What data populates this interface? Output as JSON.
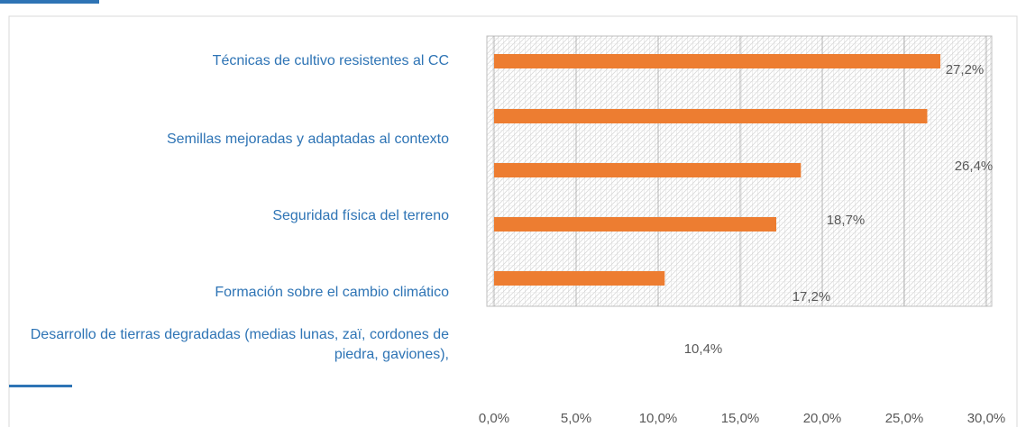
{
  "chart_data": {
    "type": "barh",
    "categories": [
      "Técnicas de cultivo resistentes al CC",
      "Semillas mejoradas y adaptadas al contexto",
      "Seguridad física del terreno",
      "Formación sobre el cambio climático",
      "Desarrollo de tierras degradadas (medias lunas, zaï, cordones de piedra, gaviones),"
    ],
    "values": [
      27.2,
      26.4,
      18.7,
      17.2,
      10.4
    ],
    "value_labels": [
      "27,2%",
      "26,4%",
      "18,7%",
      "17,2%",
      "10,4%"
    ],
    "color": "#ed7d31",
    "xlim": [
      0,
      30
    ],
    "xticks": [
      {
        "value": 0,
        "label": "0,0%"
      },
      {
        "value": 5,
        "label": "5,0%"
      },
      {
        "value": 10,
        "label": "10,0%"
      },
      {
        "value": 15,
        "label": "15,0%"
      },
      {
        "value": 20,
        "label": "20,0%"
      },
      {
        "value": 25,
        "label": "25,0%"
      },
      {
        "value": 30,
        "label": "30,0%"
      }
    ],
    "grid": true
  }
}
